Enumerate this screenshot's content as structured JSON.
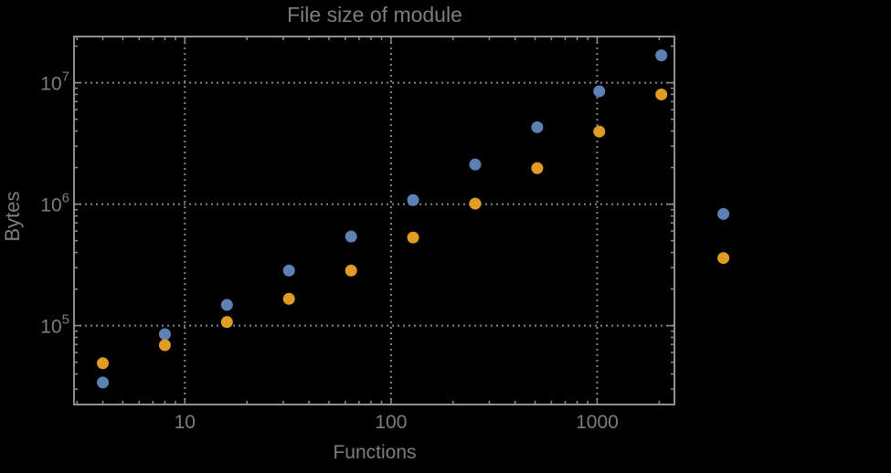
{
  "chart_data": {
    "type": "scatter",
    "title": "File size of module",
    "xlabel": "Functions",
    "ylabel": "Bytes",
    "xscale": "log",
    "yscale": "log",
    "grid": "dotted",
    "legend": "none",
    "x": [
      4,
      8,
      16,
      32,
      64,
      128,
      256,
      512,
      1024,
      2048,
      4096
    ],
    "series": [
      {
        "name": "series-blue",
        "color": "#5e81b5",
        "values": [
          34000,
          85000,
          148000,
          284000,
          541000,
          1080000,
          2120000,
          4300000,
          8500000,
          16800000,
          830000
        ]
      },
      {
        "name": "series-orange",
        "color": "#e09c24",
        "values": [
          49000,
          69000,
          107000,
          166000,
          284000,
          531000,
          1010000,
          1980000,
          3960000,
          8000000,
          360000
        ]
      }
    ],
    "x_ticks": [
      10,
      100,
      1000
    ],
    "y_ticks": [
      100000,
      1000000,
      10000000
    ],
    "xlim": [
      2.9,
      2370
    ],
    "ylim": [
      22400,
      24000000
    ]
  },
  "style": {
    "background": "#000000",
    "frame_color": "#8f8f8f",
    "grid_color": "#848484",
    "tick_color": "#8f8f8f",
    "text_color": "#7d7d7d"
  }
}
